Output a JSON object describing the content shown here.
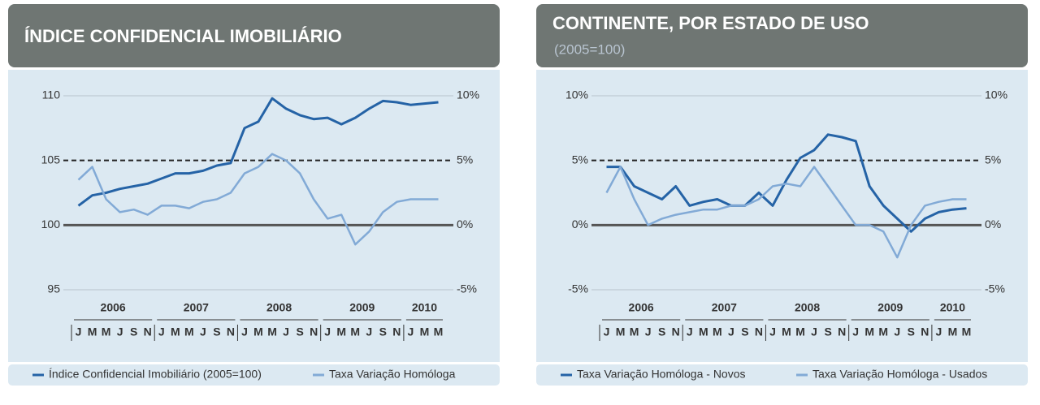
{
  "chart_data": [
    {
      "type": "line",
      "title": "ÍNDICE CONFIDENCIAL IMOBILIÁRIO",
      "years": [
        "2006",
        "2007",
        "2008",
        "2009",
        "2010"
      ],
      "categories": [
        "J",
        "M",
        "M",
        "J",
        "S",
        "N",
        "J",
        "M",
        "M",
        "J",
        "S",
        "N",
        "J",
        "M",
        "M",
        "J",
        "S",
        "N",
        "J",
        "M",
        "M",
        "J",
        "S",
        "N",
        "J",
        "M",
        "M"
      ],
      "series": [
        {
          "name": "Índice Confidencial Imobiliário (2005=100)",
          "color": "#2563a6",
          "axis": "y",
          "values": [
            101.5,
            102.3,
            102.5,
            102.8,
            103,
            103.2,
            103.6,
            104,
            104,
            104.2,
            104.6,
            104.8,
            107.5,
            108,
            109.8,
            109,
            108.5,
            108.2,
            108.3,
            107.8,
            108.3,
            109,
            109.6,
            109.5,
            109.3,
            109.4,
            109.5
          ]
        },
        {
          "name": "Taxa Variação Homóloga",
          "color": "#82aad6",
          "axis": "y2",
          "values": [
            3.5,
            4.5,
            2,
            1,
            1.2,
            0.8,
            1.5,
            1.5,
            1.3,
            1.8,
            2,
            2.5,
            4,
            4.5,
            5.5,
            5,
            4,
            2,
            0.5,
            0.8,
            -1.5,
            -0.5,
            1,
            1.8,
            2,
            2,
            2
          ]
        }
      ],
      "ylim": [
        95,
        110
      ],
      "yticks": [
        95,
        100,
        105,
        110
      ],
      "y2lim": [
        -5,
        10
      ],
      "y2ticks": [
        {
          "value": -5,
          "label": "-5%"
        },
        {
          "value": 0,
          "label": "0%"
        },
        {
          "value": 5,
          "label": "5%"
        },
        {
          "value": 10,
          "label": "10%"
        }
      ]
    },
    {
      "type": "line",
      "title": "CONTINENTE, POR ESTADO DE USO",
      "subtitle": "(2005=100)",
      "years": [
        "2006",
        "2007",
        "2008",
        "2009",
        "2010"
      ],
      "categories": [
        "J",
        "M",
        "M",
        "J",
        "S",
        "N",
        "J",
        "M",
        "M",
        "J",
        "S",
        "N",
        "J",
        "M",
        "M",
        "J",
        "S",
        "N",
        "J",
        "M",
        "M",
        "J",
        "S",
        "N",
        "J",
        "M",
        "M"
      ],
      "series": [
        {
          "name": "Taxa Variação Homóloga - Novos",
          "color": "#2563a6",
          "axis": "y",
          "values": [
            4.5,
            4.5,
            3,
            2.5,
            2,
            3,
            1.5,
            1.8,
            2,
            1.5,
            1.5,
            2.5,
            1.5,
            3.5,
            5.2,
            5.8,
            7,
            6.8,
            6.5,
            3,
            1.5,
            0.5,
            -0.5,
            0.5,
            1,
            1.2,
            1.3
          ]
        },
        {
          "name": "Taxa Variação Homóloga - Usados",
          "color": "#82aad6",
          "axis": "y",
          "values": [
            2.5,
            4.5,
            2,
            0,
            0.5,
            0.8,
            1,
            1.2,
            1.2,
            1.5,
            1.5,
            2,
            3,
            3.2,
            3,
            4.5,
            3,
            1.5,
            0,
            0,
            -0.5,
            -2.5,
            0,
            1.5,
            1.8,
            2,
            2
          ]
        }
      ],
      "ylim": [
        -5,
        10
      ],
      "yticks": [
        {
          "value": -5,
          "label": "-5%"
        },
        {
          "value": 0,
          "label": "0%"
        },
        {
          "value": 5,
          "label": "5%"
        },
        {
          "value": 10,
          "label": "10%"
        }
      ],
      "y2lim": [
        -5,
        10
      ],
      "y2ticks": [
        {
          "value": -5,
          "label": "-5%"
        },
        {
          "value": 0,
          "label": "0%"
        },
        {
          "value": 5,
          "label": "5%"
        },
        {
          "value": 10,
          "label": "10%"
        }
      ]
    }
  ]
}
